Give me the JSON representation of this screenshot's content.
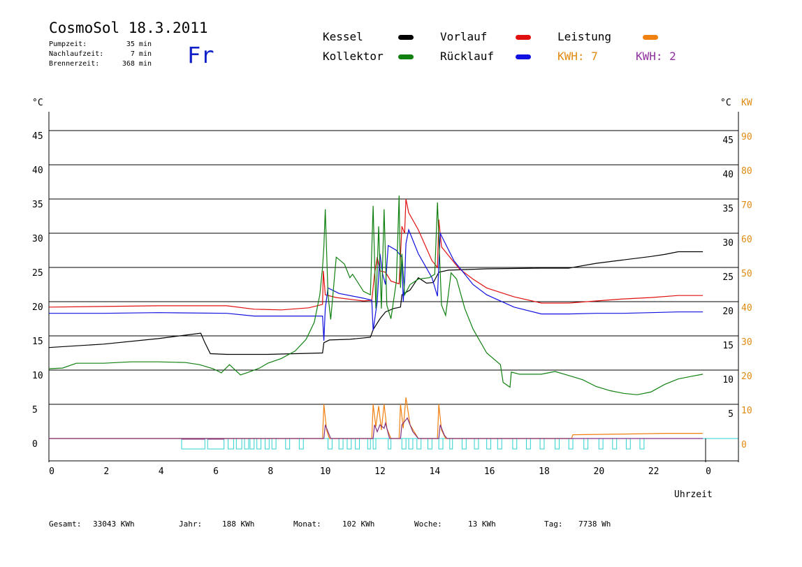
{
  "header": {
    "title": "CosmoSol 18.3.2011",
    "weekday": "Fr",
    "stats": [
      {
        "label": "Pumpzeit:",
        "value": "35 min"
      },
      {
        "label": "Nachlaufzeit:",
        "value": "7 min"
      },
      {
        "label": "Brennerzeit:",
        "value": "368 min"
      }
    ]
  },
  "legend": [
    {
      "label": "Kessel",
      "color": "#000000"
    },
    {
      "label": "Vorlauf",
      "color": "#e01010"
    },
    {
      "label": "Leistung",
      "color": "#f08010"
    },
    {
      "label": "Kollektor",
      "color": "#108010"
    },
    {
      "label": "Rücklauf",
      "color": "#1010e0"
    }
  ],
  "kwh": [
    {
      "text": "KWH: 7",
      "color": "#e08a10"
    },
    {
      "text": "KWH: 2",
      "color": "#9030a0"
    }
  ],
  "summary": [
    {
      "label": "Gesamt:",
      "value": "33043 KWh"
    },
    {
      "label": "Jahr:",
      "value": "188 KWh"
    },
    {
      "label": "Monat:",
      "value": "102 KWh"
    },
    {
      "label": "Woche:",
      "value": "13 KWh"
    },
    {
      "label": "Tag:",
      "value": "7738 Wh"
    }
  ],
  "chart_data": {
    "type": "line",
    "xlabel": "Uhrzeit",
    "xlim": [
      0,
      24
    ],
    "x_ticks": [
      "0",
      "2",
      "4",
      "6",
      "8",
      "10",
      "12",
      "14",
      "16",
      "18",
      "20",
      "22",
      "0"
    ],
    "left_axis": {
      "unit": "°C",
      "ticks": [
        "0",
        "5",
        "10",
        "15",
        "20",
        "25",
        "30",
        "35",
        "40",
        "45"
      ],
      "ylim": [
        0,
        50
      ]
    },
    "right_axis_temp": {
      "unit": "°C",
      "ticks": [
        "5",
        "10",
        "15",
        "20",
        "25",
        "30",
        "35",
        "40",
        "45"
      ]
    },
    "right_axis_power": {
      "unit": "KW",
      "ticks": [
        "0",
        "10",
        "20",
        "30",
        "40",
        "50",
        "60",
        "70",
        "80",
        "90"
      ]
    },
    "grid": "horizontal",
    "series": [
      {
        "name": "Kessel",
        "color": "#000000",
        "points": [
          [
            0,
            13.3
          ],
          [
            2,
            13.8
          ],
          [
            4,
            14.6
          ],
          [
            5.55,
            15.4
          ],
          [
            5.7,
            14
          ],
          [
            5.9,
            12.4
          ],
          [
            6.5,
            12.3
          ],
          [
            8,
            12.3
          ],
          [
            9,
            12.4
          ],
          [
            10,
            12.5
          ],
          [
            10.05,
            14
          ],
          [
            10.25,
            14.4
          ],
          [
            11,
            14.5
          ],
          [
            11.75,
            14.8
          ],
          [
            11.85,
            15.9
          ],
          [
            12.1,
            17.5
          ],
          [
            12.3,
            18.5
          ],
          [
            12.6,
            19
          ],
          [
            12.85,
            19.2
          ],
          [
            12.9,
            21
          ],
          [
            13.2,
            21.7
          ],
          [
            13.5,
            23.5
          ],
          [
            13.8,
            22.7
          ],
          [
            14.05,
            22.8
          ],
          [
            14.25,
            24.3
          ],
          [
            14.6,
            24.6
          ],
          [
            16,
            24.8
          ],
          [
            18,
            24.9
          ],
          [
            19,
            24.9
          ],
          [
            20,
            25.6
          ],
          [
            21,
            26.1
          ],
          [
            22,
            26.6
          ],
          [
            22.5,
            26.9
          ],
          [
            23,
            27.3
          ],
          [
            23.9,
            27.3
          ]
        ]
      },
      {
        "name": "Vorlauf",
        "color": "#e01010",
        "points": [
          [
            0,
            19.2
          ],
          [
            2,
            19.3
          ],
          [
            4,
            19.4
          ],
          [
            6.5,
            19.4
          ],
          [
            7.5,
            18.9
          ],
          [
            8.5,
            18.8
          ],
          [
            9.5,
            19.1
          ],
          [
            10,
            19.6
          ],
          [
            10.03,
            24.5
          ],
          [
            10.1,
            21
          ],
          [
            10.5,
            20.6
          ],
          [
            11.5,
            20.1
          ],
          [
            11.8,
            20.2
          ],
          [
            11.9,
            24
          ],
          [
            12,
            26.5
          ],
          [
            12.1,
            24.5
          ],
          [
            12.3,
            24.3
          ],
          [
            12.5,
            23
          ],
          [
            12.8,
            22.6
          ],
          [
            12.9,
            31
          ],
          [
            13,
            30
          ],
          [
            13.05,
            35
          ],
          [
            13.15,
            33
          ],
          [
            13.5,
            30.5
          ],
          [
            14,
            26
          ],
          [
            14.2,
            25
          ],
          [
            14.25,
            32
          ],
          [
            14.35,
            28
          ],
          [
            15,
            24.8
          ],
          [
            15.5,
            23.3
          ],
          [
            16,
            22
          ],
          [
            17,
            20.7
          ],
          [
            18,
            19.8
          ],
          [
            19,
            19.8
          ],
          [
            20,
            20.1
          ],
          [
            21,
            20.4
          ],
          [
            22,
            20.6
          ],
          [
            23,
            20.9
          ],
          [
            23.9,
            20.9
          ]
        ]
      },
      {
        "name": "Rücklauf",
        "color": "#1010e0",
        "points": [
          [
            0,
            18.3
          ],
          [
            2,
            18.3
          ],
          [
            4,
            18.4
          ],
          [
            6.5,
            18.3
          ],
          [
            7.5,
            17.9
          ],
          [
            8.5,
            17.9
          ],
          [
            10,
            17.9
          ],
          [
            10.05,
            14.3
          ],
          [
            10.1,
            19
          ],
          [
            10.2,
            22
          ],
          [
            10.6,
            21.2
          ],
          [
            11.5,
            20.5
          ],
          [
            11.8,
            20.2
          ],
          [
            11.85,
            15.8
          ],
          [
            12,
            20
          ],
          [
            12.1,
            27
          ],
          [
            12.2,
            24
          ],
          [
            12.3,
            22.5
          ],
          [
            12.4,
            28.2
          ],
          [
            12.7,
            27.5
          ],
          [
            12.9,
            26.5
          ],
          [
            12.95,
            20
          ],
          [
            13,
            23
          ],
          [
            13.05,
            28.5
          ],
          [
            13.15,
            30.5
          ],
          [
            13.5,
            27
          ],
          [
            14,
            23.5
          ],
          [
            14.2,
            20.8
          ],
          [
            14.3,
            30
          ],
          [
            14.8,
            26
          ],
          [
            15.5,
            22.5
          ],
          [
            16,
            21
          ],
          [
            17,
            19.2
          ],
          [
            18,
            18.2
          ],
          [
            19,
            18.2
          ],
          [
            20,
            18.3
          ],
          [
            21,
            18.3
          ],
          [
            22,
            18.4
          ],
          [
            23,
            18.5
          ],
          [
            23.9,
            18.5
          ]
        ]
      },
      {
        "name": "Kollektor",
        "color": "#108010",
        "points": [
          [
            0,
            10.2
          ],
          [
            0.5,
            10.3
          ],
          [
            1,
            11
          ],
          [
            2,
            11
          ],
          [
            3,
            11.2
          ],
          [
            4,
            11.2
          ],
          [
            5,
            11.1
          ],
          [
            5.5,
            10.8
          ],
          [
            6,
            10.2
          ],
          [
            6.3,
            9.6
          ],
          [
            6.6,
            10.8
          ],
          [
            7,
            9.3
          ],
          [
            7.3,
            9.7
          ],
          [
            7.7,
            10.3
          ],
          [
            8,
            11
          ],
          [
            8.5,
            11.7
          ],
          [
            9,
            12.8
          ],
          [
            9.4,
            14.5
          ],
          [
            9.7,
            17
          ],
          [
            9.9,
            21
          ],
          [
            10,
            25
          ],
          [
            10.05,
            28
          ],
          [
            10.1,
            33.5
          ],
          [
            10.2,
            21
          ],
          [
            10.3,
            17.4
          ],
          [
            10.5,
            26.5
          ],
          [
            10.8,
            25.5
          ],
          [
            11,
            23.5
          ],
          [
            11.1,
            24
          ],
          [
            11.5,
            21.5
          ],
          [
            11.75,
            21
          ],
          [
            11.85,
            34
          ],
          [
            11.95,
            19
          ],
          [
            12.05,
            31
          ],
          [
            12.15,
            19
          ],
          [
            12.25,
            33.5
          ],
          [
            12.35,
            19.5
          ],
          [
            12.5,
            17.5
          ],
          [
            12.7,
            23
          ],
          [
            12.8,
            35.5
          ],
          [
            12.85,
            22
          ],
          [
            12.9,
            27
          ],
          [
            13,
            21
          ],
          [
            13.2,
            22.5
          ],
          [
            13.5,
            23.3
          ],
          [
            13.9,
            23.5
          ],
          [
            14.1,
            24
          ],
          [
            14.2,
            34.5
          ],
          [
            14.35,
            19.5
          ],
          [
            14.5,
            18
          ],
          [
            14.7,
            24.2
          ],
          [
            14.9,
            23.3
          ],
          [
            15.2,
            19
          ],
          [
            15.5,
            16
          ],
          [
            16,
            12.5
          ],
          [
            16.5,
            10.8
          ],
          [
            16.6,
            8.2
          ],
          [
            16.85,
            7.5
          ],
          [
            16.9,
            9.7
          ],
          [
            17.2,
            9.4
          ],
          [
            18,
            9.4
          ],
          [
            18.5,
            9.8
          ],
          [
            19,
            9.2
          ],
          [
            19.5,
            8.6
          ],
          [
            20,
            7.6
          ],
          [
            20.5,
            7
          ],
          [
            21,
            6.6
          ],
          [
            21.5,
            6.4
          ],
          [
            22,
            6.8
          ],
          [
            22.5,
            7.9
          ],
          [
            23,
            8.7
          ],
          [
            23.5,
            9.1
          ],
          [
            23.9,
            9.4
          ]
        ]
      }
    ],
    "power_series": [
      {
        "name": "Leistung",
        "color": "#f08010",
        "points": [
          [
            0,
            0
          ],
          [
            10.0,
            0
          ],
          [
            10.05,
            10
          ],
          [
            10.15,
            2.5
          ],
          [
            10.25,
            0
          ],
          [
            11.8,
            0
          ],
          [
            11.85,
            10
          ],
          [
            11.95,
            3.5
          ],
          [
            12.05,
            9.5
          ],
          [
            12.15,
            2.5
          ],
          [
            12.25,
            10
          ],
          [
            12.35,
            3
          ],
          [
            12.5,
            0
          ],
          [
            12.8,
            0
          ],
          [
            12.85,
            10
          ],
          [
            12.95,
            3
          ],
          [
            13.05,
            12
          ],
          [
            13.2,
            4
          ],
          [
            13.5,
            0
          ],
          [
            14.2,
            0
          ],
          [
            14.25,
            10
          ],
          [
            14.35,
            2.5
          ],
          [
            14.5,
            0
          ],
          [
            19.1,
            0
          ],
          [
            19.15,
            1.1
          ],
          [
            21,
            1.3
          ],
          [
            22.5,
            1.5
          ],
          [
            23.9,
            1.5
          ]
        ]
      },
      {
        "name": "Leistung 2",
        "color": "#803080",
        "points": [
          [
            0,
            0
          ],
          [
            10.05,
            0
          ],
          [
            10.1,
            4
          ],
          [
            10.2,
            2
          ],
          [
            10.3,
            0
          ],
          [
            11.85,
            0
          ],
          [
            11.9,
            4
          ],
          [
            12.0,
            2
          ],
          [
            12.1,
            4
          ],
          [
            12.25,
            3
          ],
          [
            12.3,
            4.5
          ],
          [
            12.45,
            0
          ],
          [
            12.85,
            0
          ],
          [
            12.9,
            4
          ],
          [
            13.1,
            6
          ],
          [
            13.3,
            2
          ],
          [
            13.5,
            0
          ],
          [
            14.25,
            0
          ],
          [
            14.3,
            4
          ],
          [
            14.45,
            1
          ],
          [
            14.55,
            0
          ],
          [
            23.9,
            0
          ]
        ]
      }
    ],
    "pump_intervals": [
      [
        4.85,
        5.7
      ],
      [
        5.8,
        6.4
      ],
      [
        6.55,
        6.75
      ],
      [
        6.85,
        7.05
      ],
      [
        7.15,
        7.3
      ],
      [
        7.35,
        7.5
      ],
      [
        7.6,
        7.75
      ],
      [
        7.9,
        8.05
      ],
      [
        8.15,
        8.3
      ],
      [
        8.65,
        8.8
      ],
      [
        9.15,
        9.3
      ],
      [
        10.2,
        10.35
      ],
      [
        10.6,
        10.75
      ],
      [
        10.9,
        11.05
      ],
      [
        11.2,
        11.35
      ],
      [
        11.65,
        11.75
      ],
      [
        11.85,
        11.95
      ],
      [
        12.4,
        12.5
      ],
      [
        12.9,
        13.05
      ],
      [
        13.15,
        13.3
      ],
      [
        13.45,
        13.6
      ],
      [
        13.85,
        14.0
      ],
      [
        14.25,
        14.4
      ],
      [
        14.65,
        14.75
      ],
      [
        15.1,
        15.25
      ],
      [
        15.55,
        15.7
      ],
      [
        16.0,
        16.15
      ],
      [
        16.4,
        16.55
      ],
      [
        16.95,
        17.1
      ],
      [
        17.45,
        17.6
      ],
      [
        17.95,
        18.1
      ],
      [
        18.5,
        18.65
      ],
      [
        19.0,
        19.15
      ],
      [
        19.55,
        19.7
      ],
      [
        20.1,
        20.25
      ],
      [
        20.6,
        20.75
      ],
      [
        21.1,
        21.25
      ],
      [
        21.6,
        21.75
      ]
    ],
    "burner_intervals": [
      [
        4.85,
        5.7
      ],
      [
        5.8,
        6.4
      ]
    ]
  }
}
